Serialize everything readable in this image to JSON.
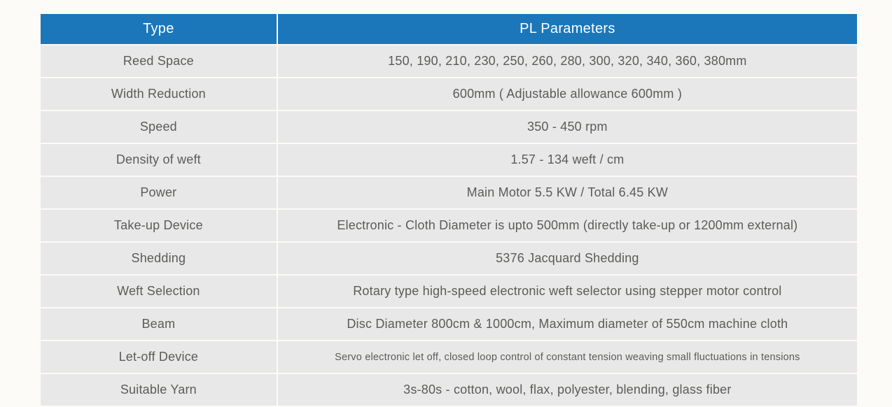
{
  "table": {
    "header_bg": "#1b77ba",
    "header_fg": "#ffffff",
    "cell_bg": "#e8e8e8",
    "cell_fg": "#5b5b58",
    "border_color": "#fcfbf7",
    "columns": [
      "Type",
      "PL Parameters"
    ],
    "rows": [
      {
        "type": "Reed Space",
        "param": "150, 190, 210, 230, 250, 260, 280, 300, 320, 340, 360, 380mm"
      },
      {
        "type": "Width Reduction",
        "param": "600mm ( Adjustable allowance 600mm )"
      },
      {
        "type": "Speed",
        "param": "350 - 450 rpm"
      },
      {
        "type": "Density of weft",
        "param": "1.57 - 134 weft / cm"
      },
      {
        "type": "Power",
        "param": "Main Motor 5.5 KW / Total 6.45 KW"
      },
      {
        "type": "Take-up Device",
        "param": "Electronic - Cloth Diameter is upto  500mm (directly take-up or 1200mm external)"
      },
      {
        "type": "Shedding",
        "param": "5376 Jacquard Shedding"
      },
      {
        "type": "Weft Selection",
        "param": "Rotary type high-speed electronic weft selector using stepper motor control"
      },
      {
        "type": "Beam",
        "param": "Disc Diameter 800cm & 1000cm, Maximum diameter of 550cm machine cloth"
      },
      {
        "type": "Let-off Device",
        "param": "Servo electronic let off, closed loop control of constant tension weaving small fluctuations in tensions",
        "small": true
      },
      {
        "type": "Suitable Yarn",
        "param": "3s-80s - cotton, wool, flax, polyester, blending, glass fiber"
      }
    ]
  }
}
